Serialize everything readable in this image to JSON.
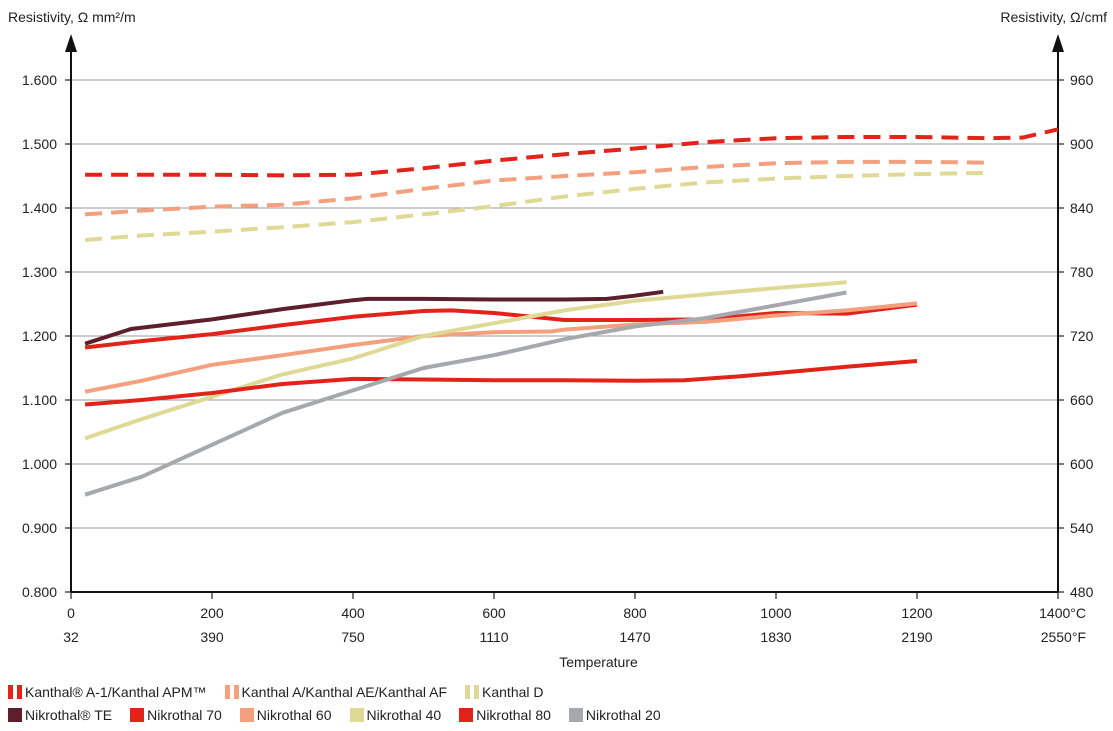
{
  "chart_data": {
    "type": "line",
    "ylabel_left": "Resistivity, Ω mm²/m",
    "ylabel_right": "Resistivity, Ω/cmf",
    "xlabel": "Temperature",
    "xlim": [
      0,
      1400
    ],
    "ylim_left": [
      0.8,
      1.6
    ],
    "ylim_right": [
      480,
      960
    ],
    "grid": true,
    "x_ticks_c": [
      "0",
      "200",
      "400",
      "600",
      "800",
      "1000",
      "1200",
      "1400°C"
    ],
    "x_ticks_f": [
      "32",
      "390",
      "750",
      "1110",
      "1470",
      "1830",
      "2190",
      "2550°F"
    ],
    "y_ticks_left": [
      "0.800",
      "0.900",
      "1.000",
      "1.100",
      "1.200",
      "1.300",
      "1.400",
      "1.500",
      "1.600"
    ],
    "y_ticks_right": [
      "480",
      "540",
      "600",
      "660",
      "720",
      "780",
      "840",
      "900",
      "960"
    ],
    "legend_placement": "bottom",
    "series": [
      {
        "name": "Kanthal® A-1/Kanthal APM™",
        "style": "dashed",
        "color": "#e2231a",
        "x": [
          20,
          100,
          200,
          300,
          400,
          500,
          600,
          700,
          800,
          900,
          1000,
          1100,
          1200,
          1300,
          1350,
          1400
        ],
        "y": [
          1.452,
          1.452,
          1.452,
          1.451,
          1.452,
          1.462,
          1.474,
          1.484,
          1.493,
          1.503,
          1.509,
          1.511,
          1.511,
          1.509,
          1.51,
          1.523
        ]
      },
      {
        "name": "Kanthal A/Kanthal AE/Kanthal AF",
        "style": "dashed",
        "color": "#f4a07e",
        "x": [
          20,
          100,
          200,
          300,
          400,
          500,
          600,
          700,
          800,
          900,
          1000,
          1100,
          1200,
          1300
        ],
        "y": [
          1.39,
          1.396,
          1.402,
          1.405,
          1.415,
          1.43,
          1.443,
          1.45,
          1.456,
          1.464,
          1.47,
          1.472,
          1.472,
          1.471
        ]
      },
      {
        "name": "Kanthal D",
        "style": "dashed",
        "color": "#dfd996",
        "x": [
          20,
          100,
          200,
          300,
          400,
          500,
          600,
          700,
          800,
          900,
          1000,
          1100,
          1200,
          1300
        ],
        "y": [
          1.35,
          1.357,
          1.363,
          1.37,
          1.378,
          1.39,
          1.403,
          1.418,
          1.43,
          1.44,
          1.446,
          1.45,
          1.453,
          1.455
        ]
      },
      {
        "name": "Nikrothal® TE",
        "style": "solid",
        "color": "#5e1f2d",
        "x": [
          20,
          85,
          200,
          300,
          400,
          420,
          500,
          600,
          700,
          760,
          800,
          840
        ],
        "y": [
          1.188,
          1.211,
          1.226,
          1.242,
          1.256,
          1.258,
          1.258,
          1.257,
          1.257,
          1.258,
          1.263,
          1.269
        ]
      },
      {
        "name": "Nikrothal 70",
        "style": "solid",
        "color": "#e2231a",
        "x": [
          20,
          100,
          200,
          300,
          400,
          500,
          540,
          600,
          700,
          800,
          900,
          1000,
          1100,
          1200
        ],
        "y": [
          1.182,
          1.192,
          1.203,
          1.217,
          1.23,
          1.239,
          1.24,
          1.236,
          1.225,
          1.225,
          1.226,
          1.236,
          1.235,
          1.249
        ]
      },
      {
        "name": "Nikrothal 60",
        "style": "solid",
        "color": "#f4a07e",
        "x": [
          20,
          100,
          200,
          300,
          400,
          500,
          600,
          680,
          700,
          800,
          900,
          1000,
          1100,
          1200
        ],
        "y": [
          1.113,
          1.13,
          1.155,
          1.17,
          1.186,
          1.2,
          1.206,
          1.207,
          1.21,
          1.218,
          1.222,
          1.232,
          1.24,
          1.251
        ]
      },
      {
        "name": "Nikrothal 40",
        "style": "solid",
        "color": "#dfd996",
        "x": [
          20,
          100,
          200,
          300,
          400,
          500,
          600,
          700,
          800,
          900,
          1000,
          1100
        ],
        "y": [
          1.04,
          1.07,
          1.105,
          1.14,
          1.165,
          1.2,
          1.22,
          1.24,
          1.255,
          1.265,
          1.275,
          1.284
        ]
      },
      {
        "name": "Nikrothal 80",
        "style": "solid",
        "color": "#e2231a",
        "x": [
          20,
          100,
          200,
          300,
          400,
          500,
          600,
          700,
          800,
          870,
          950,
          1000,
          1100,
          1200
        ],
        "y": [
          1.093,
          1.1,
          1.111,
          1.125,
          1.133,
          1.132,
          1.131,
          1.131,
          1.13,
          1.131,
          1.137,
          1.142,
          1.152,
          1.161
        ]
      },
      {
        "name": "Nikrothal 20",
        "style": "solid",
        "color": "#a7a8ad",
        "x": [
          20,
          100,
          200,
          300,
          400,
          500,
          600,
          700,
          800,
          900,
          1000,
          1100
        ],
        "y": [
          0.952,
          0.98,
          1.03,
          1.08,
          1.115,
          1.15,
          1.17,
          1.195,
          1.215,
          1.228,
          1.248,
          1.268
        ]
      }
    ]
  },
  "legend_rows": [
    [
      0,
      1,
      2
    ],
    [
      3,
      4,
      5,
      6,
      7,
      8
    ]
  ]
}
